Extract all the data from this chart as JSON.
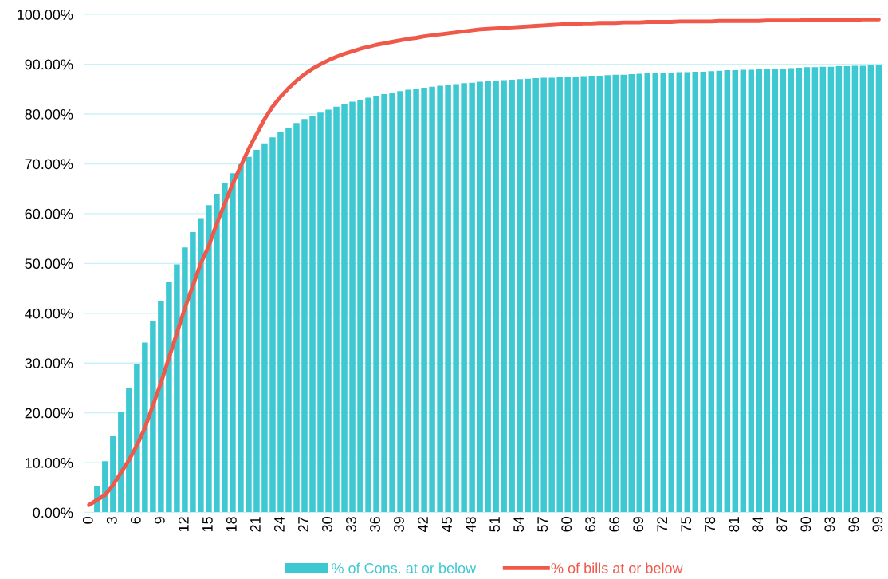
{
  "chart_data": {
    "type": "bar",
    "categories": [
      "0",
      null,
      null,
      "3",
      null,
      null,
      "6",
      null,
      null,
      "9",
      null,
      null,
      "12",
      null,
      null,
      "15",
      null,
      null,
      "18",
      null,
      null,
      "21",
      null,
      null,
      "24",
      null,
      null,
      "27",
      null,
      null,
      "30",
      null,
      null,
      "33",
      null,
      null,
      "36",
      null,
      null,
      "39",
      null,
      null,
      "42",
      null,
      null,
      "45",
      null,
      null,
      "48",
      null,
      null,
      "51",
      null,
      null,
      "54",
      null,
      null,
      "57",
      null,
      null,
      "60",
      null,
      null,
      "63",
      null,
      null,
      "66",
      null,
      null,
      "69",
      null,
      null,
      "72",
      null,
      null,
      "75",
      null,
      null,
      "78",
      null,
      null,
      "81",
      null,
      null,
      "84",
      null,
      null,
      "87",
      null,
      null,
      "90",
      null,
      null,
      "93",
      null,
      null,
      "96",
      null,
      null,
      "99"
    ],
    "series": [
      {
        "name": "% of Cons. at or below",
        "color": "#3ec8d2",
        "values": [
          0,
          5.2,
          10.3,
          15.3,
          20.2,
          25.0,
          29.7,
          34.1,
          38.4,
          42.5,
          46.3,
          49.8,
          53.2,
          56.3,
          59.1,
          61.7,
          64.0,
          66.1,
          68.1,
          69.9,
          71.4,
          72.8,
          74.1,
          75.3,
          76.3,
          77.3,
          78.2,
          79.0,
          79.7,
          80.3,
          80.9,
          81.5,
          82.0,
          82.5,
          82.9,
          83.3,
          83.7,
          84.0,
          84.3,
          84.6,
          84.9,
          85.1,
          85.3,
          85.5,
          85.7,
          85.9,
          86.0,
          86.2,
          86.3,
          86.5,
          86.6,
          86.7,
          86.8,
          86.9,
          87.0,
          87.1,
          87.2,
          87.3,
          87.3,
          87.4,
          87.5,
          87.5,
          87.6,
          87.7,
          87.7,
          87.8,
          87.9,
          87.9,
          88.0,
          88.1,
          88.2,
          88.2,
          88.3,
          88.3,
          88.4,
          88.4,
          88.5,
          88.5,
          88.6,
          88.7,
          88.8,
          88.8,
          88.9,
          88.9,
          89.0,
          89.0,
          89.1,
          89.1,
          89.2,
          89.3,
          89.4,
          89.4,
          89.5,
          89.5,
          89.6,
          89.6,
          89.7,
          89.7,
          89.8,
          89.9
        ]
      },
      {
        "name": "% of bills at or below",
        "type": "line",
        "color": "#f0584a",
        "values": [
          1.5,
          2.5,
          3.5,
          5.5,
          8,
          10.5,
          13.5,
          17,
          21.5,
          26,
          31,
          36,
          41,
          45.5,
          50,
          53.5,
          58,
          62,
          66,
          69.5,
          73,
          76,
          79,
          81.5,
          83.5,
          85.2,
          86.7,
          88,
          89.1,
          90,
          90.8,
          91.5,
          92.1,
          92.6,
          93.1,
          93.5,
          93.9,
          94.2,
          94.5,
          94.8,
          95.1,
          95.3,
          95.6,
          95.8,
          96.0,
          96.2,
          96.4,
          96.6,
          96.8,
          97.0,
          97.1,
          97.2,
          97.3,
          97.4,
          97.5,
          97.6,
          97.7,
          97.8,
          97.9,
          98.0,
          98.1,
          98.1,
          98.2,
          98.2,
          98.3,
          98.3,
          98.3,
          98.4,
          98.4,
          98.4,
          98.5,
          98.5,
          98.5,
          98.5,
          98.6,
          98.6,
          98.6,
          98.6,
          98.6,
          98.7,
          98.7,
          98.7,
          98.7,
          98.7,
          98.7,
          98.8,
          98.8,
          98.8,
          98.8,
          98.8,
          98.9,
          98.9,
          98.9,
          98.9,
          98.9,
          98.9,
          98.9,
          99.0,
          99.0,
          99.0
        ]
      }
    ],
    "ylim": [
      0,
      100
    ],
    "yticks": [
      {
        "value": 0,
        "label": "0.00%"
      },
      {
        "value": 10,
        "label": "10.00%"
      },
      {
        "value": 20,
        "label": "20.00%"
      },
      {
        "value": 30,
        "label": "30.00%"
      },
      {
        "value": 40,
        "label": "40.00%"
      },
      {
        "value": 50,
        "label": "50.00%"
      },
      {
        "value": 60,
        "label": "60.00%"
      },
      {
        "value": 70,
        "label": "70.00%"
      },
      {
        "value": 80,
        "label": "80.00%"
      },
      {
        "value": 90,
        "label": "90.00%"
      },
      {
        "value": 100,
        "label": "100.00%"
      }
    ],
    "grid": "y",
    "legend": "bottom",
    "marker": "none",
    "line_style": "solid"
  }
}
